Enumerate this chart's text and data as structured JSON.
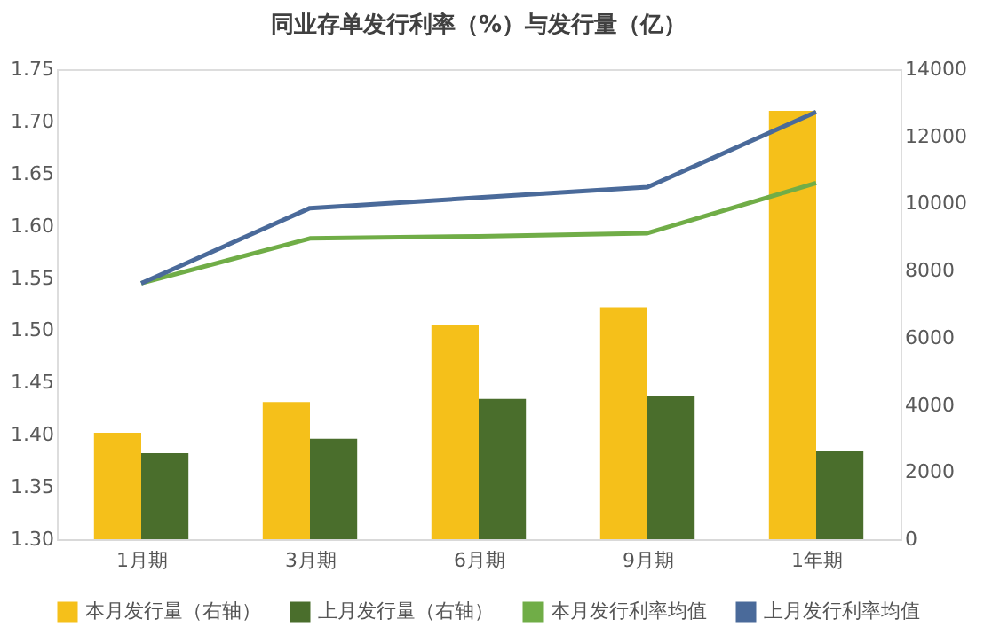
{
  "chart_data": {
    "type": "bar",
    "title": "同业存单发行利率（%）与发行量（亿）",
    "categories": [
      "1月期",
      "3月期",
      "6月期",
      "9月期",
      "1年期"
    ],
    "series": [
      {
        "name": "本月发行量（右轴）",
        "axis": "y2",
        "color": "#f5c01a",
        "values": [
          3170,
          4090,
          6390,
          6910,
          12760
        ]
      },
      {
        "name": "上月发行量（右轴）",
        "axis": "y2",
        "color": "#4a6e2c",
        "values": [
          2560,
          2990,
          4180,
          4250,
          2620
        ]
      },
      {
        "name": "本月发行利率均值",
        "type": "line",
        "color": "#70ad47",
        "values": [
          1.545,
          1.588,
          1.59,
          1.593,
          1.641
        ]
      },
      {
        "name": "上月发行利率均值",
        "type": "line",
        "color": "#4a6a9a",
        "values": [
          1.545,
          1.617,
          1.627,
          1.637,
          1.709
        ]
      }
    ],
    "ylim": [
      1.3,
      1.75
    ],
    "yticks": [
      {
        "value": 1.3,
        "label": "1.30"
      },
      {
        "value": 1.35,
        "label": "1.35"
      },
      {
        "value": 1.4,
        "label": "1.40"
      },
      {
        "value": 1.45,
        "label": "1.45"
      },
      {
        "value": 1.5,
        "label": "1.50"
      },
      {
        "value": 1.55,
        "label": "1.55"
      },
      {
        "value": 1.6,
        "label": "1.60"
      },
      {
        "value": 1.65,
        "label": "1.65"
      },
      {
        "value": 1.7,
        "label": "1.70"
      },
      {
        "value": 1.75,
        "label": "1.75"
      }
    ],
    "y2lim": [
      0,
      14000
    ],
    "y2ticks": [
      0,
      2000,
      4000,
      6000,
      8000,
      10000,
      12000,
      14000
    ],
    "grid": false,
    "legend": "bottom",
    "marker": "none",
    "line_style": "solid"
  }
}
